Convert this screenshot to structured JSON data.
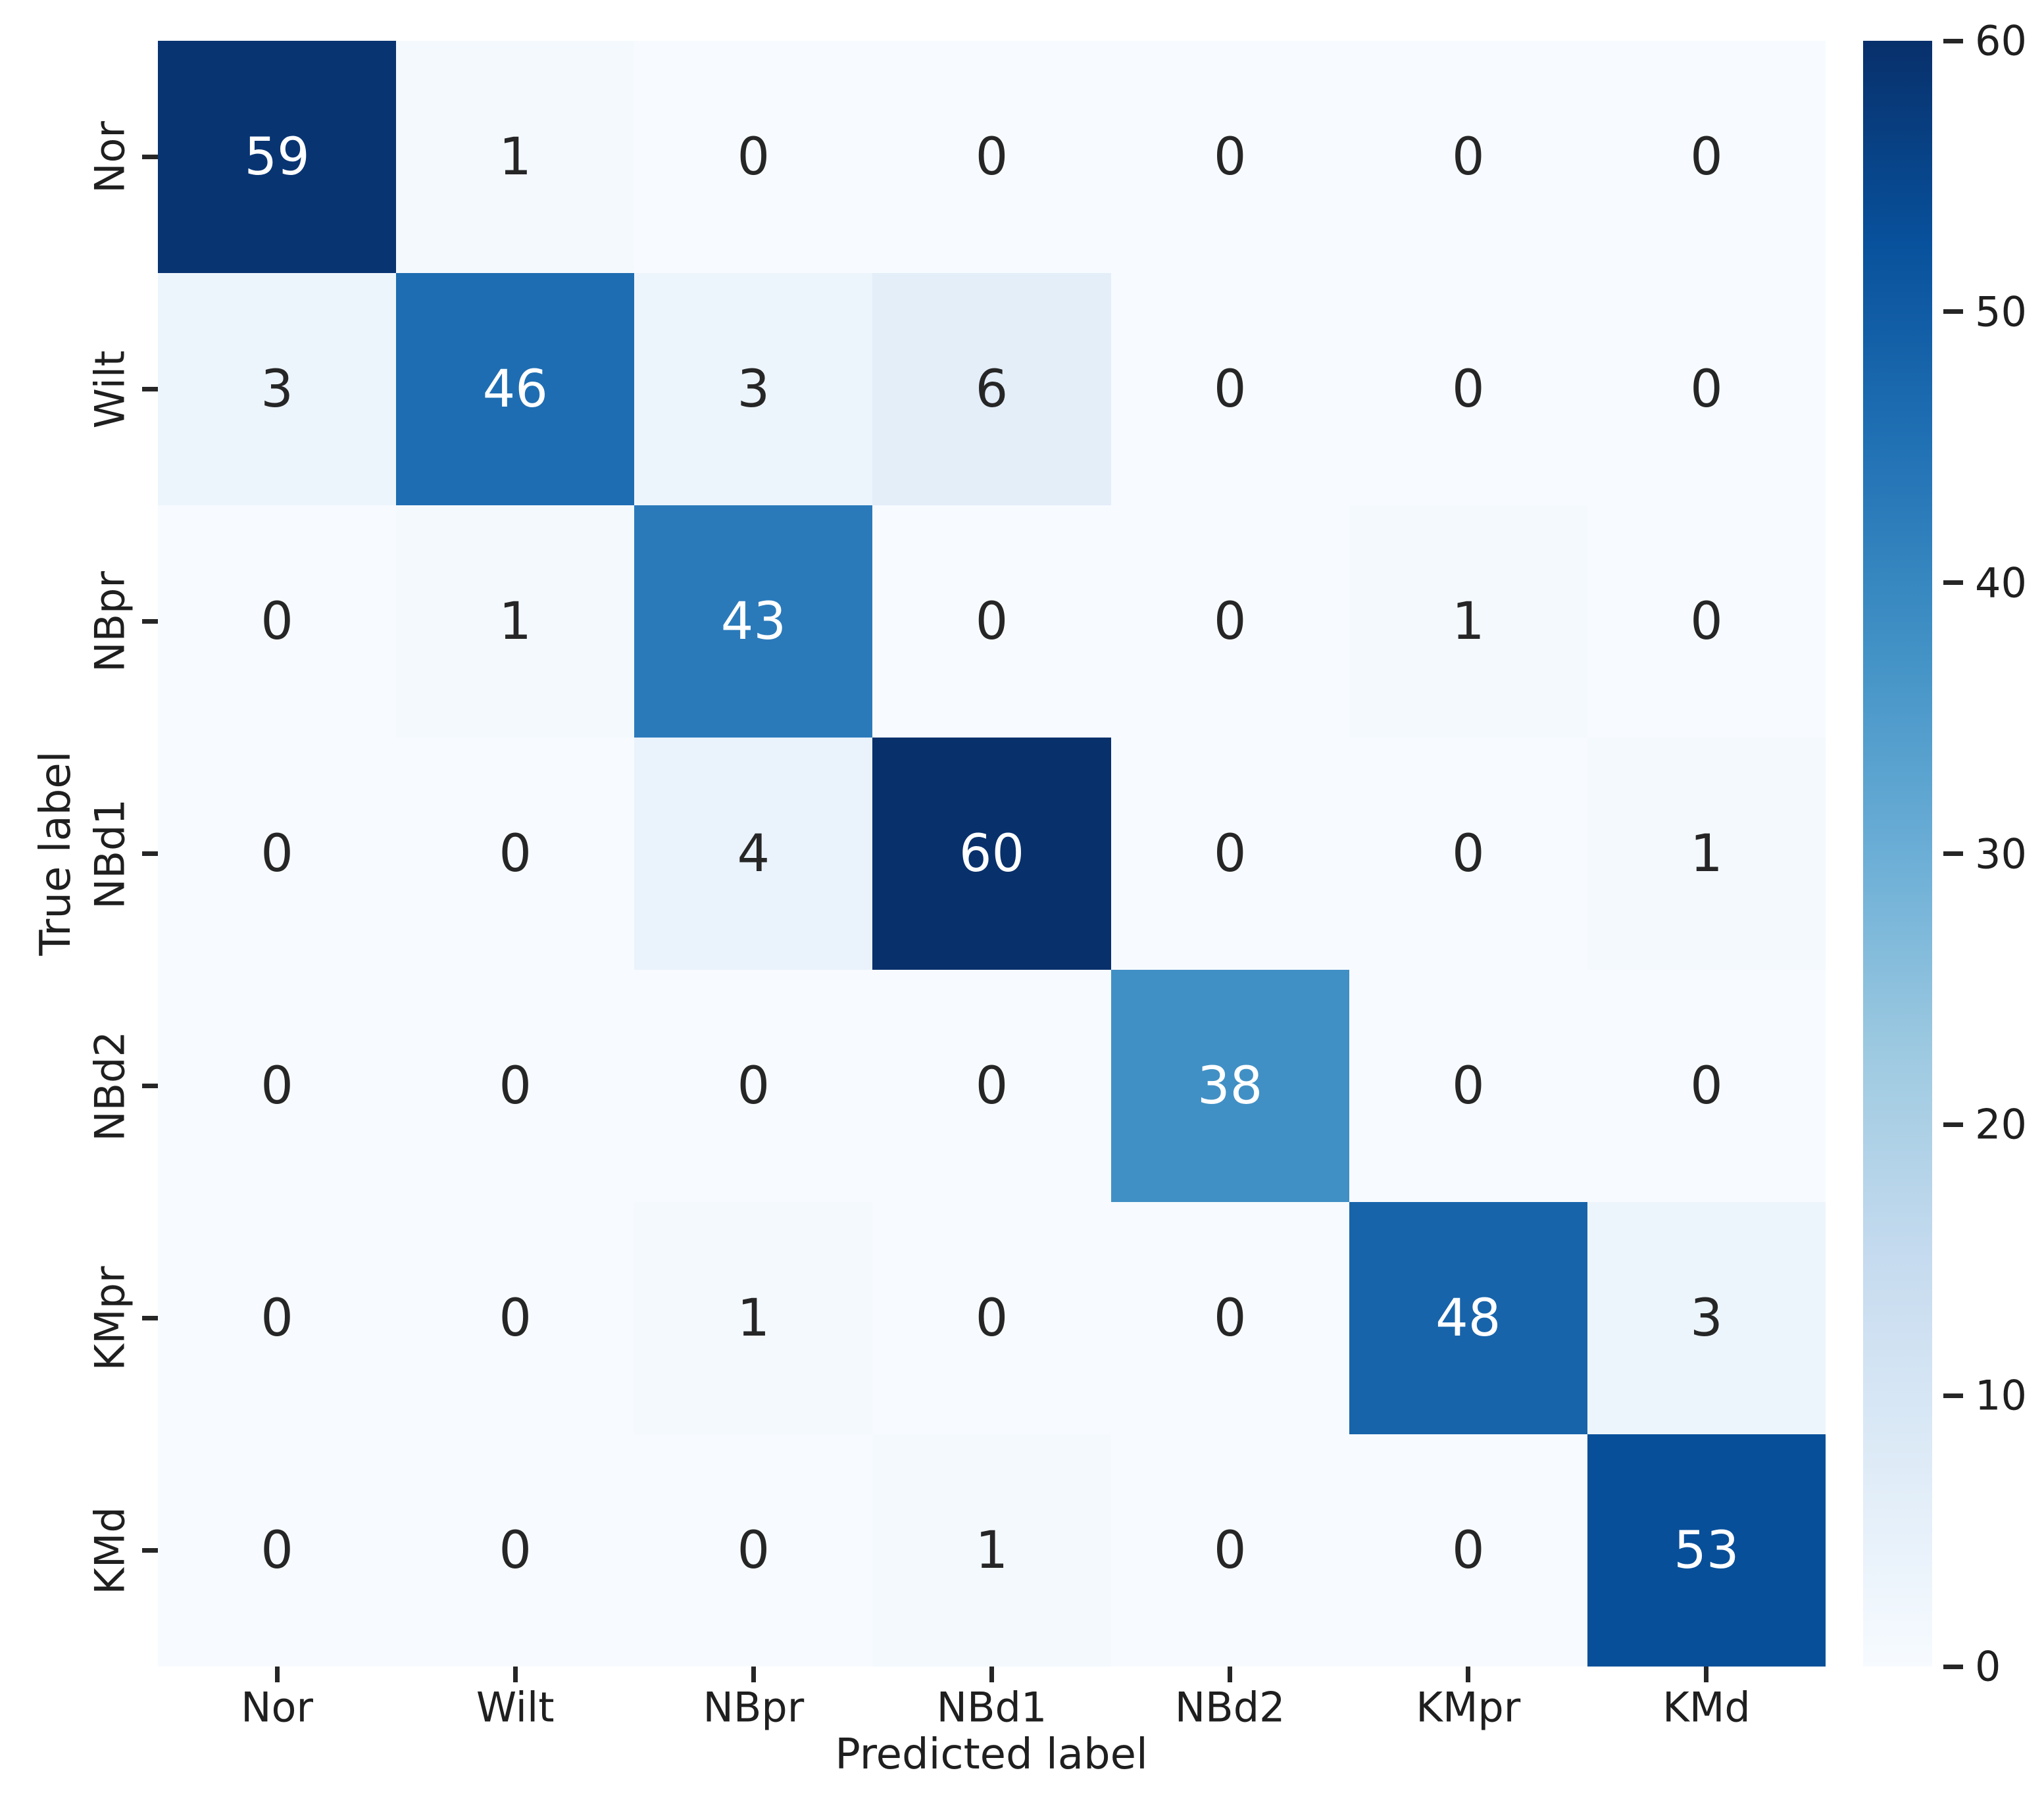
{
  "figure": {
    "background": "#ffffff",
    "text_color": "#1f1f1f"
  },
  "chart_data": {
    "type": "heatmap",
    "title": "",
    "xlabel": "Predicted label",
    "ylabel": "True label",
    "categories": [
      "Nor",
      "Wilt",
      "NBpr",
      "NBd1",
      "NBd2",
      "KMpr",
      "KMd"
    ],
    "x_tick_labels": [
      "Nor",
      "Wilt",
      "NBpr",
      "NBd1",
      "NBd2",
      "KMpr",
      "KMd"
    ],
    "y_tick_labels": [
      "Nor",
      "Wilt",
      "NBpr",
      "NBd1",
      "NBd2",
      "KMpr",
      "KMd"
    ],
    "matrix": [
      [
        59,
        1,
        0,
        0,
        0,
        0,
        0
      ],
      [
        3,
        46,
        3,
        6,
        0,
        0,
        0
      ],
      [
        0,
        1,
        43,
        0,
        0,
        1,
        0
      ],
      [
        0,
        0,
        4,
        60,
        0,
        0,
        1
      ],
      [
        0,
        0,
        0,
        0,
        38,
        0,
        0
      ],
      [
        0,
        0,
        1,
        0,
        0,
        48,
        3
      ],
      [
        0,
        0,
        0,
        1,
        0,
        0,
        53
      ]
    ],
    "vmin": 0,
    "vmax": 60,
    "colormap": "Blues",
    "colormap_stops": [
      "#f7fbff",
      "#deebf7",
      "#c6dbef",
      "#9ecae1",
      "#6baed6",
      "#4292c6",
      "#2171b5",
      "#08519c",
      "#08306b"
    ],
    "colorbar_ticks": [
      0,
      10,
      20,
      30,
      40,
      50,
      60
    ],
    "colorbar_position": "right",
    "annotation_color_dark": "#262626",
    "annotation_color_light": "#ffffff",
    "grid": false,
    "legend_position": "none"
  }
}
